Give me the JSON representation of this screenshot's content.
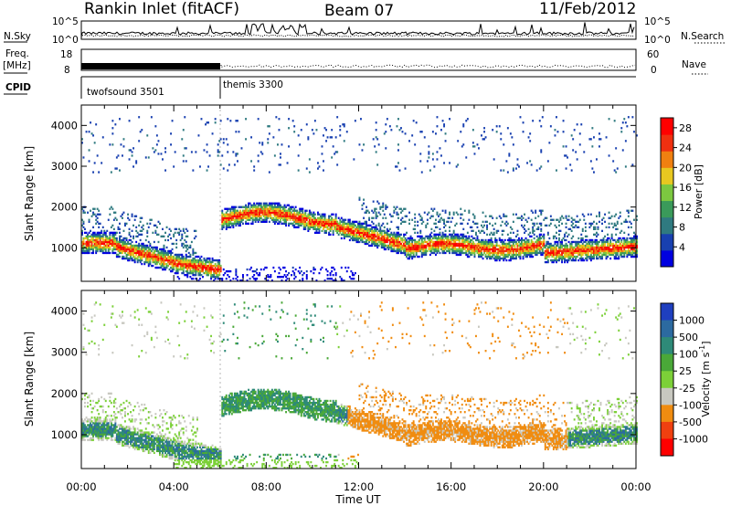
{
  "header": {
    "station": "Rankin Inlet (fitACF)",
    "beam": "Beam 07",
    "date": "11/Feb/2012"
  },
  "panel_labels": {
    "nsky": "N.Sky",
    "nsearch": "N.Search",
    "freq_line1": "Freq.",
    "freq_line2": "[MHz]",
    "nave": "Nave",
    "cpid": "CPID"
  },
  "noise_panel": {
    "left_ticks": [
      "10^5",
      "10^0"
    ],
    "right_ticks": [
      "10^5",
      "10^0"
    ]
  },
  "freq_panel": {
    "left_ticks": [
      "18",
      "8"
    ],
    "right_ticks": [
      "60",
      "0"
    ]
  },
  "cpid_segments": [
    {
      "label": "twofsound 3501",
      "start": "00:00",
      "end": "06:00"
    },
    {
      "label": "themis 3300",
      "start": "06:00",
      "end": "24:00"
    }
  ],
  "colors": {
    "power_scale": [
      "#0000e0",
      "#1840b0",
      "#2f7a80",
      "#3a9a5a",
      "#7cc840",
      "#e8c820",
      "#f08010",
      "#f03010",
      "#ff0000"
    ],
    "velocity_scale": [
      "#1f3fbf",
      "#2c6aa0",
      "#2e8a78",
      "#4aa838",
      "#7cd038",
      "#c8c8c0",
      "#f08c10",
      "#f04010",
      "#ff0000"
    ]
  },
  "chart_data": [
    {
      "type": "heatmap",
      "title": "Power",
      "ylabel": "Slant Range [km]",
      "xlabel": "Time UT",
      "x_ticks": [
        "00:00",
        "04:00",
        "08:00",
        "12:00",
        "16:00",
        "20:00",
        "00:00"
      ],
      "y_ticks": [
        1000,
        2000,
        3000,
        4000
      ],
      "ylim": [
        180,
        4500
      ],
      "xlim_hours": [
        0,
        24
      ],
      "colorbar": {
        "label": "Power [dB]",
        "ticks": [
          4,
          8,
          12,
          16,
          20,
          24,
          28
        ],
        "range": [
          0,
          30
        ]
      }
    },
    {
      "type": "heatmap",
      "title": "Velocity",
      "ylabel": "Slant Range [km]",
      "xlabel": "Time UT",
      "x_ticks": [
        "00:00",
        "04:00",
        "08:00",
        "12:00",
        "16:00",
        "20:00",
        "00:00"
      ],
      "y_ticks": [
        1000,
        2000,
        3000,
        4000
      ],
      "ylim": [
        180,
        4500
      ],
      "xlim_hours": [
        0,
        24
      ],
      "colorbar": {
        "label": "Velocity [m s^-1]",
        "ticks": [
          1000,
          500,
          100,
          25,
          -25,
          -100,
          -500,
          -1000
        ]
      }
    }
  ]
}
